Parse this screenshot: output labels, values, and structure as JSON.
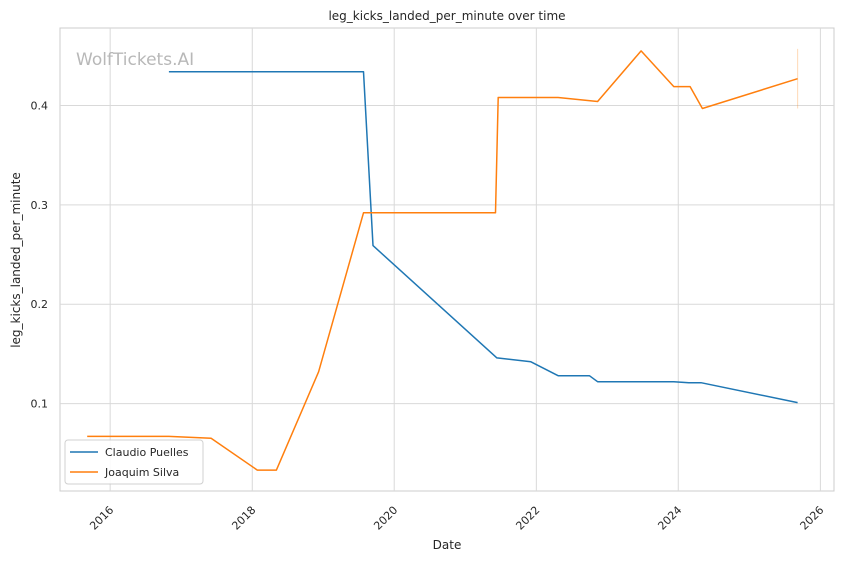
{
  "chart_data": {
    "type": "line",
    "title": "leg_kicks_landed_per_minute over time",
    "xlabel": "Date",
    "ylabel": "leg_kicks_landed_per_minute",
    "watermark": "WolfTickets.AI",
    "x_ticks": [
      "2016",
      "2018",
      "2020",
      "2022",
      "2024",
      "2026"
    ],
    "y_ticks": [
      "0.1",
      "0.2",
      "0.3",
      "0.4"
    ],
    "xlim": [
      "2015-04-18",
      "2026-03-12"
    ],
    "ylim": [
      0.012,
      0.478
    ],
    "grid": true,
    "legend_position": "lower-left",
    "series": [
      {
        "name": "Claudio Puelles",
        "color": "#1f77b4",
        "points": [
          [
            "2016-10-29",
            0.434
          ],
          [
            "2019-07-27",
            0.434
          ],
          [
            "2019-09-14",
            0.259
          ],
          [
            "2021-06-12",
            0.146
          ],
          [
            "2021-12-04",
            0.142
          ],
          [
            "2022-04-23",
            0.128
          ],
          [
            "2022-10-01",
            0.128
          ],
          [
            "2022-11-12",
            0.122
          ],
          [
            "2023-12-09",
            0.122
          ],
          [
            "2024-02-24",
            0.121
          ],
          [
            "2024-04-27",
            0.121
          ],
          [
            "2025-09-06",
            0.101
          ]
        ]
      },
      {
        "name": "Joaquim Silva",
        "color": "#ff7f0e",
        "points": [
          [
            "2015-09-05",
            0.067
          ],
          [
            "2016-10-29",
            0.067
          ],
          [
            "2017-06-03",
            0.065
          ],
          [
            "2018-01-27",
            0.033
          ],
          [
            "2018-05-05",
            0.033
          ],
          [
            "2018-12-08",
            0.132
          ],
          [
            "2019-07-27",
            0.292
          ],
          [
            "2021-06-05",
            0.292
          ],
          [
            "2021-06-19",
            0.408
          ],
          [
            "2022-04-23",
            0.408
          ],
          [
            "2022-11-12",
            0.404
          ],
          [
            "2023-06-24",
            0.455
          ],
          [
            "2023-12-09",
            0.419
          ],
          [
            "2024-03-02",
            0.419
          ],
          [
            "2024-05-04",
            0.397
          ],
          [
            "2025-09-06",
            0.427
          ]
        ]
      }
    ]
  }
}
